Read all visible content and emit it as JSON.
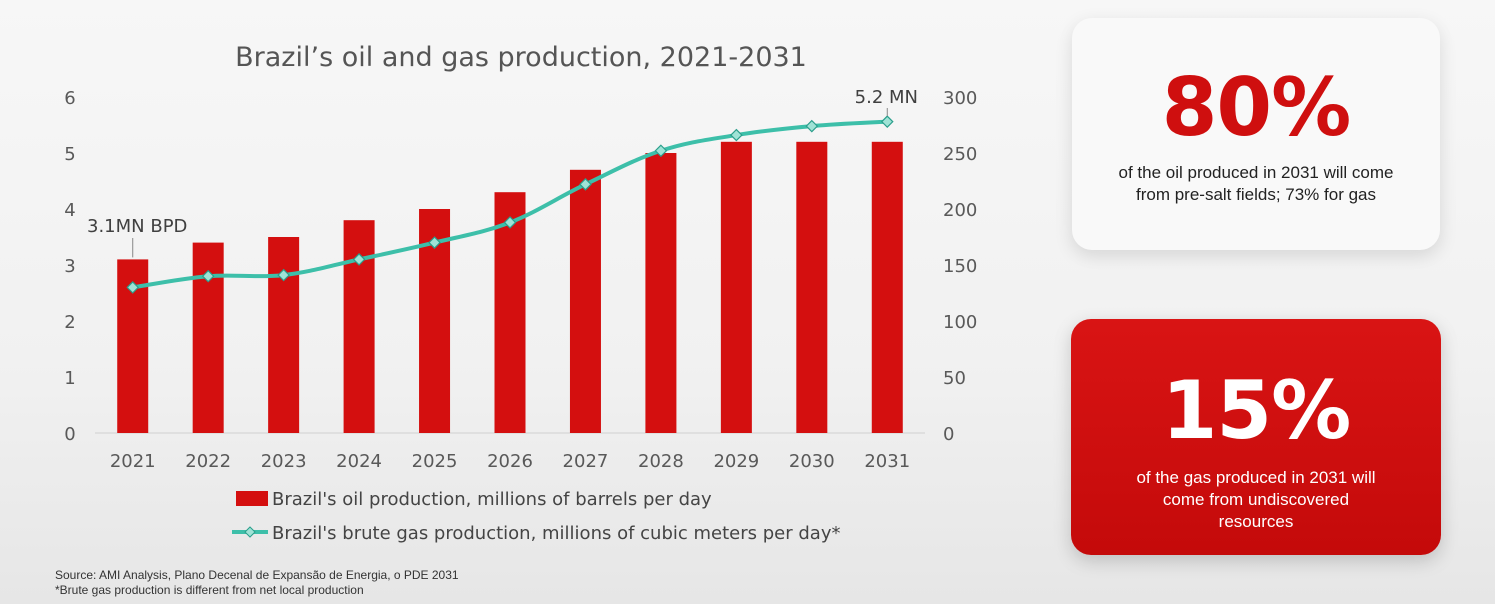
{
  "chart_data": {
    "type": "bar+line",
    "title": "Brazil’s oil and gas production, 2021-2031",
    "categories": [
      "2021",
      "2022",
      "2023",
      "2024",
      "2025",
      "2026",
      "2027",
      "2028",
      "2029",
      "2030",
      "2031"
    ],
    "series": [
      {
        "name": "Brazil's oil production, millions of barrels per day",
        "kind": "bar",
        "axis": "left",
        "color": "#d40f0f",
        "values": [
          3.1,
          3.4,
          3.5,
          3.8,
          4.0,
          4.3,
          4.7,
          5.0,
          5.2,
          5.2,
          5.2
        ]
      },
      {
        "name": "Brazil's brute gas production, millions of cubic meters per day*",
        "kind": "line",
        "axis": "right",
        "color": "#3dbfa9",
        "values": [
          130,
          140,
          141,
          155,
          170,
          188,
          222,
          252,
          266,
          274,
          278
        ]
      }
    ],
    "y_left": {
      "range": [
        0,
        6
      ],
      "ticks": [
        "0",
        "1",
        "2",
        "3",
        "4",
        "5",
        "6"
      ]
    },
    "y_right": {
      "range": [
        0,
        300
      ],
      "ticks": [
        "0",
        "50",
        "100",
        "150",
        "200",
        "250",
        "300"
      ]
    },
    "annotations": [
      {
        "text": "3.1MN BPD",
        "category": "2021"
      },
      {
        "text": "5.2 MN",
        "category": "2031"
      }
    ],
    "legend_position": "bottom",
    "grid": false
  },
  "footer": {
    "source": "Source: AMI Analysis, Plano Decenal de Expansão de Energia, o PDE 2031",
    "note": "*Brute gas production is different from net local production"
  },
  "cards": {
    "oil": {
      "value": "80%",
      "text": "of the oil produced in 2031 will come from pre-salt fields; 73% for gas"
    },
    "gas": {
      "value": "15%",
      "text": "of the gas produced in 2031 will come from undiscovered resources"
    }
  }
}
